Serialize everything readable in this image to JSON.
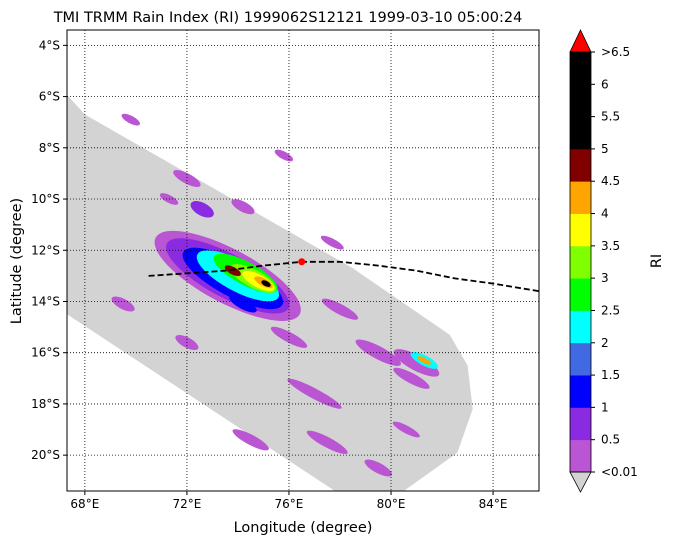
{
  "chart_data": {
    "type": "heatmap",
    "title": "TMI TRMM Rain Index (RI) 1999062S12121 1999-03-10 05:00:24",
    "xlabel": "Longitude (degree)",
    "ylabel": "Latitude (degree)",
    "xlim": [
      67.3,
      85.8
    ],
    "ylim": [
      -21.4,
      -3.4
    ],
    "x_ticks": [
      {
        "value": 68,
        "label": "68°E"
      },
      {
        "value": 72,
        "label": "72°E"
      },
      {
        "value": 76,
        "label": "76°E"
      },
      {
        "value": 80,
        "label": "80°E"
      },
      {
        "value": 84,
        "label": "84°E"
      }
    ],
    "y_ticks": [
      {
        "value": -4,
        "label": "4°S"
      },
      {
        "value": -6,
        "label": "6°S"
      },
      {
        "value": -8,
        "label": "8°S"
      },
      {
        "value": -10,
        "label": "10°S"
      },
      {
        "value": -12,
        "label": "12°S"
      },
      {
        "value": -14,
        "label": "14°S"
      },
      {
        "value": -16,
        "label": "16°S"
      },
      {
        "value": -18,
        "label": "18°S"
      },
      {
        "value": -20,
        "label": "20°S"
      }
    ],
    "grid": true,
    "swath_color": "#d3d3d3",
    "track": [
      {
        "lon": 70.5,
        "lat": -13.0
      },
      {
        "lon": 72.0,
        "lat": -12.9
      },
      {
        "lon": 73.5,
        "lat": -12.8
      },
      {
        "lon": 75.0,
        "lat": -12.6
      },
      {
        "lon": 76.5,
        "lat": -12.45
      },
      {
        "lon": 78.0,
        "lat": -12.45
      },
      {
        "lon": 79.5,
        "lat": -12.6
      },
      {
        "lon": 81.0,
        "lat": -12.8
      },
      {
        "lon": 82.5,
        "lat": -13.1
      },
      {
        "lon": 84.0,
        "lat": -13.3
      },
      {
        "lon": 85.8,
        "lat": -13.6
      }
    ],
    "storm_position": {
      "lon": 76.5,
      "lat": -12.45
    },
    "colorbar": {
      "label": "RI",
      "tick_labels": [
        "<0.01",
        "0.5",
        "1",
        "1.5",
        "2",
        "2.5",
        "3",
        "3.5",
        "4",
        "4.5",
        "5",
        "5.5",
        "6",
        ">6.5"
      ],
      "colors": [
        "#ba55d3",
        "#8a2be2",
        "#0000ff",
        "#4169e1",
        "#00ffff",
        "#00ff00",
        "#7fff00",
        "#ffff00",
        "#ffa500",
        "#800000",
        "#000000",
        "#000000",
        "#000000"
      ],
      "under_color": "#d3d3d3",
      "over_color": "#ff0000"
    },
    "rain_features": [
      {
        "lon": 69.8,
        "lat": -6.9,
        "rx": 0.4,
        "ry": 0.15,
        "level": 0
      },
      {
        "lon": 72.0,
        "lat": -9.2,
        "rx": 0.6,
        "ry": 0.2,
        "level": 0
      },
      {
        "lon": 72.6,
        "lat": -10.4,
        "rx": 0.5,
        "ry": 0.25,
        "level": 1
      },
      {
        "lon": 71.3,
        "lat": -10.0,
        "rx": 0.4,
        "ry": 0.15,
        "level": 0
      },
      {
        "lon": 74.2,
        "lat": -10.3,
        "rx": 0.5,
        "ry": 0.2,
        "level": 0
      },
      {
        "lon": 73.6,
        "lat": -13.0,
        "rx": 3.2,
        "ry": 1.05,
        "level": 0
      },
      {
        "lon": 73.6,
        "lat": -13.0,
        "rx": 2.7,
        "ry": 0.85,
        "level": 1
      },
      {
        "lon": 73.8,
        "lat": -13.1,
        "rx": 2.2,
        "ry": 0.7,
        "level": 2
      },
      {
        "lon": 74.0,
        "lat": -13.0,
        "rx": 1.8,
        "ry": 0.6,
        "level": 4
      },
      {
        "lon": 74.3,
        "lat": -12.9,
        "rx": 1.4,
        "ry": 0.45,
        "level": 5
      },
      {
        "lon": 74.6,
        "lat": -13.1,
        "rx": 1.0,
        "ry": 0.35,
        "level": 6
      },
      {
        "lon": 74.8,
        "lat": -13.2,
        "rx": 0.7,
        "ry": 0.25,
        "level": 7
      },
      {
        "lon": 75.0,
        "lat": -13.25,
        "rx": 0.4,
        "ry": 0.15,
        "level": 8
      },
      {
        "lon": 73.8,
        "lat": -12.8,
        "rx": 0.35,
        "ry": 0.15,
        "level": 9
      },
      {
        "lon": 75.1,
        "lat": -13.3,
        "rx": 0.2,
        "ry": 0.1,
        "level": 10
      },
      {
        "lon": 74.2,
        "lat": -14.1,
        "rx": 0.6,
        "ry": 0.2,
        "level": 2
      },
      {
        "lon": 78.0,
        "lat": -14.3,
        "rx": 0.8,
        "ry": 0.2,
        "level": 0
      },
      {
        "lon": 76.0,
        "lat": -15.4,
        "rx": 0.8,
        "ry": 0.2,
        "level": 0
      },
      {
        "lon": 79.5,
        "lat": -16.0,
        "rx": 1.0,
        "ry": 0.25,
        "level": 0
      },
      {
        "lon": 81.0,
        "lat": -16.4,
        "rx": 1.0,
        "ry": 0.3,
        "level": 0
      },
      {
        "lon": 81.3,
        "lat": -16.3,
        "rx": 0.6,
        "ry": 0.2,
        "level": 4
      },
      {
        "lon": 81.3,
        "lat": -16.3,
        "rx": 0.3,
        "ry": 0.1,
        "level": 8
      },
      {
        "lon": 77.0,
        "lat": -17.6,
        "rx": 1.2,
        "ry": 0.2,
        "level": 0
      },
      {
        "lon": 80.8,
        "lat": -17.0,
        "rx": 0.8,
        "ry": 0.2,
        "level": 0
      },
      {
        "lon": 74.5,
        "lat": -19.4,
        "rx": 0.8,
        "ry": 0.2,
        "level": 0
      },
      {
        "lon": 77.5,
        "lat": -19.5,
        "rx": 0.9,
        "ry": 0.2,
        "level": 0
      },
      {
        "lon": 80.6,
        "lat": -19.0,
        "rx": 0.6,
        "ry": 0.15,
        "level": 0
      },
      {
        "lon": 79.5,
        "lat": -20.5,
        "rx": 0.6,
        "ry": 0.2,
        "level": 0
      },
      {
        "lon": 72.0,
        "lat": -15.6,
        "rx": 0.5,
        "ry": 0.2,
        "level": 0
      },
      {
        "lon": 69.5,
        "lat": -14.1,
        "rx": 0.5,
        "ry": 0.2,
        "level": 0
      },
      {
        "lon": 75.8,
        "lat": -8.3,
        "rx": 0.4,
        "ry": 0.15,
        "level": 0
      },
      {
        "lon": 77.7,
        "lat": -11.7,
        "rx": 0.5,
        "ry": 0.15,
        "level": 0
      }
    ]
  }
}
